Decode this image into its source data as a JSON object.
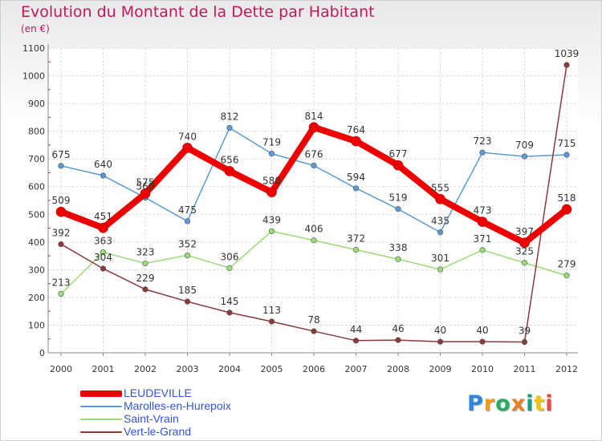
{
  "title": "Evolution du Montant de la Dette par Habitant",
  "subtitle": "(en €)",
  "brand": {
    "text": "Proxiti",
    "letter_colors": [
      "#2e86de",
      "#f39c12",
      "#27ae60",
      "#e67e22",
      "#16a085",
      "#f1c40f",
      "#e74c3c"
    ]
  },
  "chart_data": {
    "type": "line",
    "title": "Evolution du Montant de la Dette par Habitant",
    "subtitle": "(en €)",
    "xlabel": "",
    "ylabel": "",
    "x": [
      "2000",
      "2001",
      "2002",
      "2003",
      "2004",
      "2005",
      "2006",
      "2007",
      "2008",
      "2009",
      "2010",
      "2011",
      "2012"
    ],
    "ylim": [
      0,
      1100
    ],
    "yticks": [
      0,
      100,
      200,
      300,
      400,
      500,
      600,
      700,
      800,
      900,
      1000,
      1100
    ],
    "grid": true,
    "legend_position": "bottom-left",
    "series": [
      {
        "name": "Marolles-en-Hurepoix",
        "color": "#5b9bd5",
        "values": [
          675,
          640,
          560,
          475,
          812,
          719,
          676,
          594,
          519,
          435,
          723,
          709,
          715
        ],
        "labels": [
          "675",
          "640",
          "560",
          "475",
          "812",
          "719",
          "676",
          "594",
          "519",
          "435",
          "723",
          "709",
          "715"
        ]
      },
      {
        "name": "Saint-Vrain",
        "color": "#99dd77",
        "values": [
          213,
          363,
          323,
          352,
          306,
          439,
          406,
          372,
          338,
          301,
          371,
          325,
          279
        ],
        "labels": [
          "213",
          "363",
          "323",
          "352",
          "306",
          "439",
          "406",
          "372",
          "338",
          "301",
          "371",
          "325",
          "279"
        ]
      },
      {
        "name": "Vert-le-Grand",
        "color": "#8b3a3a",
        "values": [
          392,
          304,
          229,
          185,
          145,
          113,
          78,
          44,
          46,
          40,
          40,
          39,
          1039
        ],
        "labels": [
          "392",
          "304",
          "229",
          "185",
          "145",
          "113",
          "78",
          "44",
          "46",
          "40",
          "40",
          "39",
          "1039"
        ]
      },
      {
        "name": "LEUDEVILLE",
        "color": "#ee0000",
        "values": [
          509,
          451,
          575,
          740,
          656,
          580,
          814,
          764,
          677,
          555,
          473,
          397,
          518
        ],
        "labels": [
          "509",
          "451",
          "575",
          "740",
          "656",
          "580",
          "814",
          "764",
          "677",
          "555",
          "473",
          "397",
          "518"
        ]
      }
    ]
  },
  "legend": {
    "items": [
      {
        "name": "LEUDEVILLE",
        "color": "#ee0000"
      },
      {
        "name": "Marolles-en-Hurepoix",
        "color": "#5b9bd5"
      },
      {
        "name": "Saint-Vrain",
        "color": "#99dd77"
      },
      {
        "name": "Vert-le-Grand",
        "color": "#8b3a3a"
      }
    ]
  }
}
